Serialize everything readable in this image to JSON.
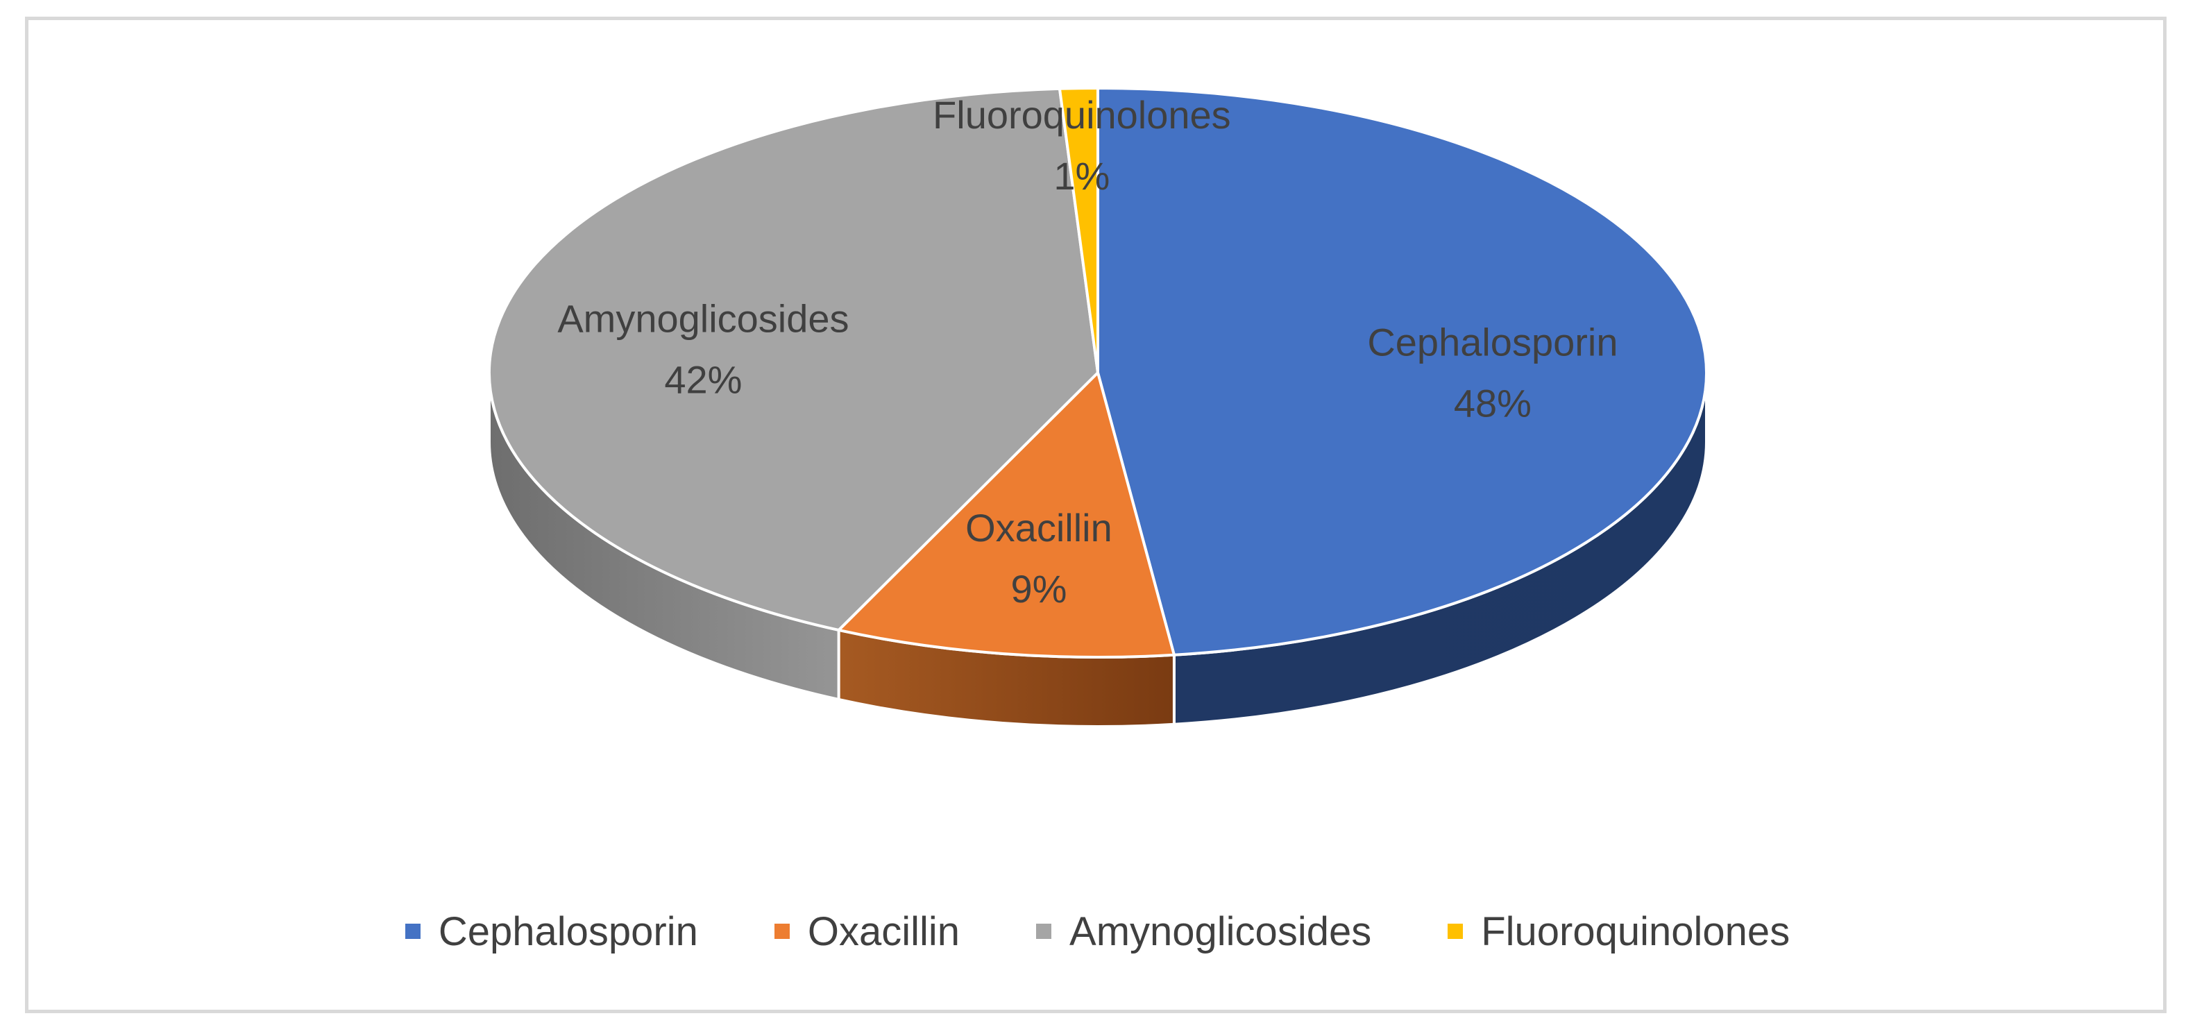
{
  "chart_data": {
    "type": "pie",
    "variant": "3d",
    "title": "",
    "slices": [
      {
        "name": "Cephalosporin",
        "value": 48,
        "label": "48%",
        "color": "#4472c4",
        "side_dark": "#1f3864",
        "side_light": "#203864"
      },
      {
        "name": "Oxacillin",
        "value": 9,
        "label": "9%",
        "color": "#ed7d31",
        "side_dark": "#7a3b12",
        "side_light": "#a65a22"
      },
      {
        "name": "Amynoglicosides",
        "value": 42,
        "label": "42%",
        "color": "#a5a5a5",
        "side_dark": "#6e6e6e",
        "side_light": "#959595"
      },
      {
        "name": "Fluoroquinolones",
        "value": 1,
        "label": "1%",
        "color": "#ffc000",
        "side_dark": "#a07800",
        "side_light": "#c09000"
      }
    ],
    "legend_position": "bottom",
    "legend": [
      "Cephalosporin",
      "Oxacillin",
      "Amynoglicosides",
      "Fluoroquinolones"
    ]
  }
}
